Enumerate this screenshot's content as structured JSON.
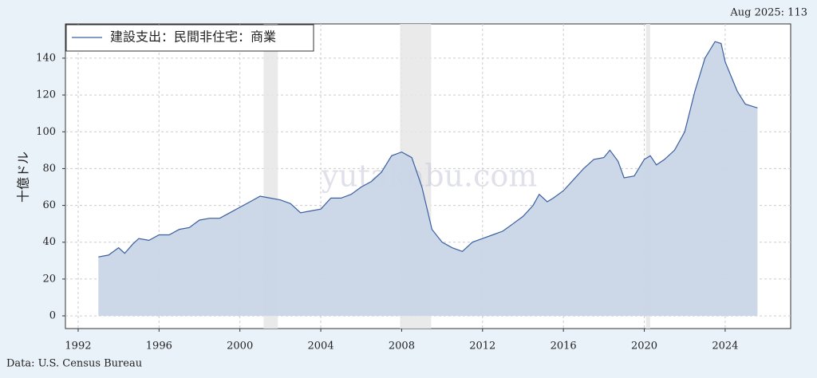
{
  "chart_data": {
    "type": "area",
    "annotation": "Aug 2025: 113",
    "source": "Data: U.S. Census Bureau",
    "watermark": "yutakabu.com",
    "ylabel": "十億ドル",
    "x": [
      1993.0,
      1993.5,
      1994.0,
      1994.3,
      1994.7,
      1995.0,
      1995.5,
      1996.0,
      1996.5,
      1997.0,
      1997.5,
      1998.0,
      1998.5,
      1999.0,
      1999.5,
      2000.0,
      2000.5,
      2001.0,
      2001.5,
      2002.0,
      2002.5,
      2003.0,
      2003.5,
      2004.0,
      2004.5,
      2005.0,
      2005.5,
      2006.0,
      2006.5,
      2007.0,
      2007.5,
      2008.0,
      2008.5,
      2009.0,
      2009.5,
      2010.0,
      2010.5,
      2011.0,
      2011.5,
      2012.0,
      2012.5,
      2013.0,
      2013.5,
      2014.0,
      2014.5,
      2014.8,
      2015.2,
      2015.5,
      2016.0,
      2016.5,
      2017.0,
      2017.5,
      2018.0,
      2018.3,
      2018.7,
      2019.0,
      2019.5,
      2020.0,
      2020.3,
      2020.6,
      2021.0,
      2021.5,
      2022.0,
      2022.5,
      2023.0,
      2023.5,
      2023.8,
      2024.0,
      2024.3,
      2024.6,
      2025.0,
      2025.3,
      2025.6
    ],
    "series": [
      {
        "name": "建設支出：民間非住宅：商業",
        "color": "#3a5fa0",
        "fill": "#c9d5e6",
        "values": [
          32,
          33,
          37,
          34,
          39,
          42,
          41,
          44,
          44,
          47,
          48,
          52,
          53,
          53,
          56,
          59,
          62,
          65,
          64,
          63,
          61,
          56,
          57,
          58,
          64,
          64,
          66,
          70,
          73,
          78,
          87,
          89,
          86,
          70,
          47,
          40,
          37,
          35,
          40,
          42,
          44,
          46,
          50,
          54,
          60,
          66,
          62,
          64,
          68,
          74,
          80,
          85,
          86,
          90,
          84,
          75,
          76,
          85,
          87,
          82,
          85,
          90,
          100,
          122,
          140,
          149,
          148,
          138,
          130,
          122,
          115,
          114,
          113
        ]
      }
    ],
    "recessions": [
      [
        2001.17,
        2001.88
      ],
      [
        2007.92,
        2009.46
      ],
      [
        2020.08,
        2020.29
      ]
    ],
    "recession_color": "#e6e6e6",
    "xlim": [
      1991.37,
      2027.24
    ],
    "xticks": [
      1992,
      1996,
      2000,
      2004,
      2008,
      2012,
      2016,
      2020,
      2024
    ],
    "ylim": [
      -6.9,
      158.6
    ],
    "yticks": [
      0,
      20,
      40,
      60,
      80,
      100,
      120,
      140
    ],
    "grid": true,
    "legend": "upper left"
  }
}
